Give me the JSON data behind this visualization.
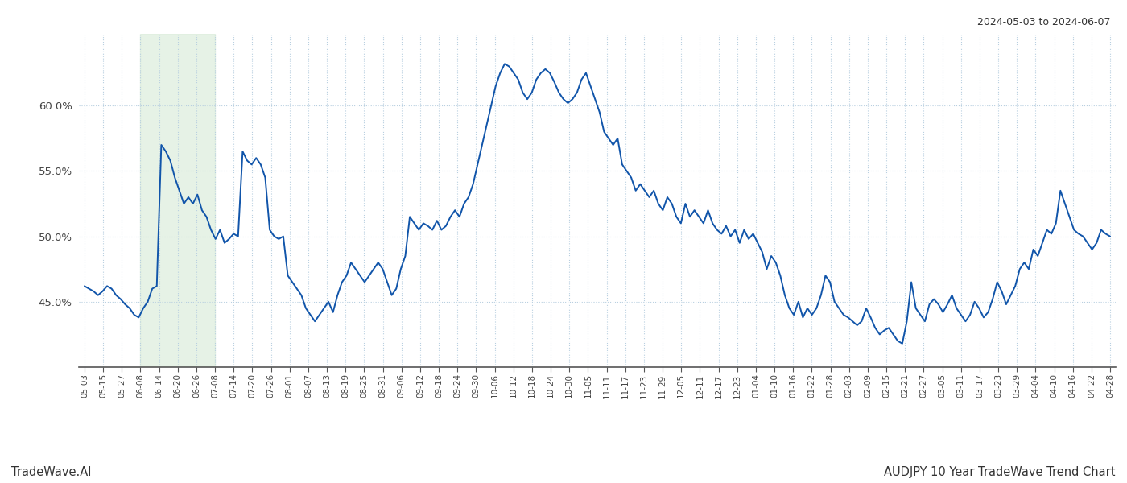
{
  "title_top_right": "2024-05-03 to 2024-06-07",
  "title_bottom_left": "TradeWave.AI",
  "title_bottom_right": "AUDJPY 10 Year TradeWave Trend Chart",
  "line_color": "#1155aa",
  "line_width": 1.4,
  "background_color": "#ffffff",
  "grid_color": "#b8cfe0",
  "grid_linestyle": ":",
  "shade_color": "#d6ead6",
  "shade_alpha": 0.6,
  "ylim": [
    40.0,
    65.5
  ],
  "yticks": [
    45.0,
    50.0,
    55.0,
    60.0
  ],
  "ytick_labels": [
    "45.0%",
    "50.0%",
    "55.0%",
    "60.0%"
  ],
  "x_labels": [
    "05-03",
    "05-15",
    "05-27",
    "06-08",
    "06-14",
    "06-20",
    "06-26",
    "07-08",
    "07-14",
    "07-20",
    "07-26",
    "08-01",
    "08-07",
    "08-13",
    "08-19",
    "08-25",
    "08-31",
    "09-06",
    "09-12",
    "09-18",
    "09-24",
    "09-30",
    "10-06",
    "10-12",
    "10-18",
    "10-24",
    "10-30",
    "11-05",
    "11-11",
    "11-17",
    "11-23",
    "11-29",
    "12-05",
    "12-11",
    "12-17",
    "12-23",
    "01-04",
    "01-10",
    "01-16",
    "01-22",
    "01-28",
    "02-03",
    "02-09",
    "02-15",
    "02-21",
    "02-27",
    "03-05",
    "03-11",
    "03-17",
    "03-23",
    "03-29",
    "04-04",
    "04-10",
    "04-16",
    "04-22",
    "04-28"
  ],
  "shade_xstart": 3,
  "shade_xend": 7,
  "values": [
    46.2,
    46.0,
    45.8,
    45.5,
    45.8,
    46.2,
    46.0,
    45.5,
    45.2,
    44.8,
    44.5,
    44.0,
    43.8,
    44.5,
    45.0,
    46.0,
    46.2,
    57.0,
    56.5,
    55.8,
    54.5,
    53.5,
    52.5,
    53.0,
    52.5,
    53.2,
    52.0,
    51.5,
    50.5,
    49.8,
    50.5,
    49.5,
    49.8,
    50.2,
    50.0,
    56.5,
    55.8,
    55.5,
    56.0,
    55.5,
    54.5,
    50.5,
    50.0,
    49.8,
    50.0,
    47.0,
    46.5,
    46.0,
    45.5,
    44.5,
    44.0,
    43.5,
    44.0,
    44.5,
    45.0,
    44.2,
    45.5,
    46.5,
    47.0,
    48.0,
    47.5,
    47.0,
    46.5,
    47.0,
    47.5,
    48.0,
    47.5,
    46.5,
    45.5,
    46.0,
    47.5,
    48.5,
    51.5,
    51.0,
    50.5,
    51.0,
    50.8,
    50.5,
    51.2,
    50.5,
    50.8,
    51.5,
    52.0,
    51.5,
    52.5,
    53.0,
    54.0,
    55.5,
    57.0,
    58.5,
    60.0,
    61.5,
    62.5,
    63.2,
    63.0,
    62.5,
    62.0,
    61.0,
    60.5,
    61.0,
    62.0,
    62.5,
    62.8,
    62.5,
    61.8,
    61.0,
    60.5,
    60.2,
    60.5,
    61.0,
    62.0,
    62.5,
    61.5,
    60.5,
    59.5,
    58.0,
    57.5,
    57.0,
    57.5,
    55.5,
    55.0,
    54.5,
    53.5,
    54.0,
    53.5,
    53.0,
    53.5,
    52.5,
    52.0,
    53.0,
    52.5,
    51.5,
    51.0,
    52.5,
    51.5,
    52.0,
    51.5,
    51.0,
    52.0,
    51.0,
    50.5,
    50.2,
    50.8,
    50.0,
    50.5,
    49.5,
    50.5,
    49.8,
    50.2,
    49.5,
    48.8,
    47.5,
    48.5,
    48.0,
    47.0,
    45.5,
    44.5,
    44.0,
    45.0,
    43.8,
    44.5,
    44.0,
    44.5,
    45.5,
    47.0,
    46.5,
    45.0,
    44.5,
    44.0,
    43.8,
    43.5,
    43.2,
    43.5,
    44.5,
    43.8,
    43.0,
    42.5,
    42.8,
    43.0,
    42.5,
    42.0,
    41.8,
    43.5,
    46.5,
    44.5,
    44.0,
    43.5,
    44.8,
    45.2,
    44.8,
    44.2,
    44.8,
    45.5,
    44.5,
    44.0,
    43.5,
    44.0,
    45.0,
    44.5,
    43.8,
    44.2,
    45.2,
    46.5,
    45.8,
    44.8,
    45.5,
    46.2,
    47.5,
    48.0,
    47.5,
    49.0,
    48.5,
    49.5,
    50.5,
    50.2,
    51.0,
    53.5,
    52.5,
    51.5,
    50.5,
    50.2,
    50.0,
    49.5,
    49.0,
    49.5,
    50.5,
    50.2,
    50.0
  ]
}
